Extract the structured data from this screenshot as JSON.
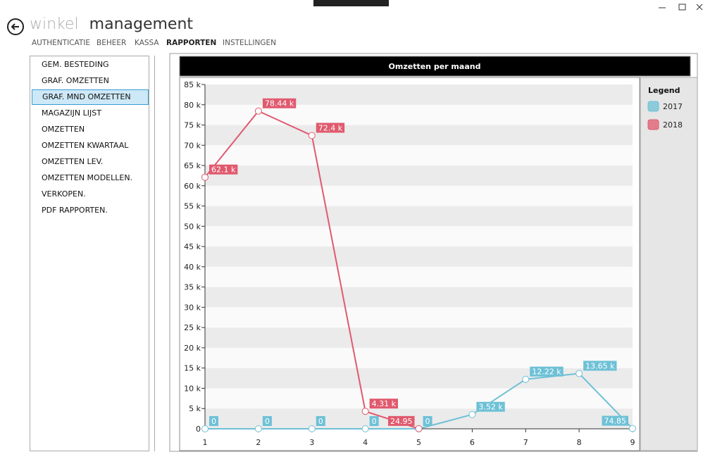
{
  "header": {
    "title_light": "winkel",
    "title_dark": "management"
  },
  "nav": [
    "AUTHENTICATIE",
    "BEHEER",
    "KASSA",
    "RAPPORTEN",
    "INSTELLINGEN"
  ],
  "nav_active": 3,
  "sidebar": [
    "GEM. BESTEDING",
    "GRAF. OMZETTEN",
    "GRAF. MND OMZETTEN",
    "MAGAZIJN LIJST",
    "OMZETTEN",
    "OMZETTEN KWARTAAL",
    "OMZETTEN LEV.",
    "OMZETTEN MODELLEN.",
    "VERKOPEN.",
    "PDF RAPPORTEN."
  ],
  "sidebar_selected": 2,
  "chart_data": {
    "type": "line",
    "title": "Omzetten per maand",
    "legend_title": "Legend",
    "x": [
      1,
      2,
      3,
      4,
      5,
      6,
      7,
      8,
      9
    ],
    "series": [
      {
        "name": "2017",
        "color": "#6ec1d6",
        "values": [
          0,
          0,
          0,
          0,
          0,
          3520,
          12220,
          13650,
          74.85
        ],
        "value_labels": [
          "0",
          "0",
          "0",
          "0",
          "0",
          "3.52 k",
          "12.22 k",
          "13.65 k",
          "74.85"
        ]
      },
      {
        "name": "2018",
        "color": "#e05a6e",
        "values": [
          62100,
          78440,
          72400,
          4310,
          24.95,
          null,
          null,
          null,
          null
        ],
        "value_labels": [
          "62.1 k",
          "78.44 k",
          "72.4 k",
          "4.31 k",
          "24.95",
          null,
          null,
          null,
          null
        ]
      }
    ],
    "xlim": [
      1,
      9
    ],
    "xticks": [
      1,
      2,
      3,
      4,
      5,
      6,
      7,
      8,
      9
    ],
    "ylim": [
      0,
      85000
    ],
    "yticks": [
      0,
      {
        "value": 5000,
        "label": "5 k"
      },
      {
        "value": 10000,
        "label": "10 k"
      },
      {
        "value": 15000,
        "label": "15 k"
      },
      {
        "value": 20000,
        "label": "20 k"
      },
      {
        "value": 25000,
        "label": "25 k"
      },
      {
        "value": 30000,
        "label": "30 k"
      },
      {
        "value": 35000,
        "label": "35 k"
      },
      {
        "value": 40000,
        "label": "40 k"
      },
      {
        "value": 45000,
        "label": "45 k"
      },
      {
        "value": 50000,
        "label": "50 k"
      },
      {
        "value": 55000,
        "label": "55 k"
      },
      {
        "value": 60000,
        "label": "60 k"
      },
      {
        "value": 65000,
        "label": "65 k"
      },
      {
        "value": 70000,
        "label": "70 k"
      },
      {
        "value": 75000,
        "label": "75 k"
      },
      {
        "value": 80000,
        "label": "80 k"
      },
      {
        "value": 85000,
        "label": "85 k"
      }
    ],
    "grid": true
  }
}
